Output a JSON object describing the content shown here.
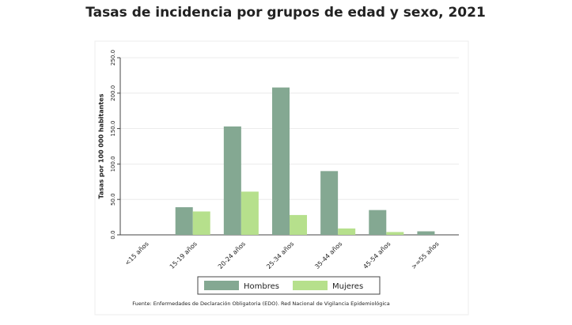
{
  "chart_data": {
    "type": "bar",
    "title": "Tasas de incidencia por grupos de edad y sexo, 2021",
    "y_label": "Tasas por 100 000 habitantes",
    "categories": [
      "<15 años",
      "15-19 años",
      "20-24 años",
      "25-34 años",
      "35-44 años",
      "45-54 años",
      ">=55 años"
    ],
    "series": [
      {
        "name": "Hombres",
        "color": "#84a892",
        "values": [
          0,
          39,
          153,
          208,
          90,
          35,
          5
        ]
      },
      {
        "name": "Mujeres",
        "color": "#b6e08c",
        "values": [
          0,
          33,
          61,
          28,
          9,
          4,
          0
        ]
      }
    ],
    "ylim": [
      0,
      250
    ],
    "yticks": [
      {
        "value": 0,
        "label": "0.0"
      },
      {
        "value": 50,
        "label": "50.0"
      },
      {
        "value": 100,
        "label": "100.0"
      },
      {
        "value": 150,
        "label": "150.0"
      },
      {
        "value": 200,
        "label": "200.0"
      },
      {
        "value": 250,
        "label": "250.0"
      }
    ],
    "grid": true,
    "source": "Fuente: Enfermedades de Declaración Obligatoria (EDO). Red Nacional de Vigilancia Epidemiológica"
  }
}
